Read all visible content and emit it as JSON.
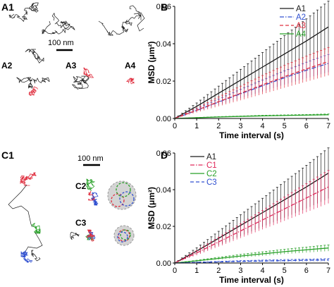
{
  "panel_labels": {
    "A1": "A1",
    "A2": "A2",
    "A3": "A3",
    "A4": "A4",
    "B": "B",
    "C1": "C1",
    "C2": "C2",
    "C3": "C3",
    "D": "D"
  },
  "scale_bars": {
    "A": "100 nm",
    "C": "100 nm"
  },
  "colors": {
    "black": "#1a1a1a",
    "blue": "#3050d0",
    "red": "#e03040",
    "pink": "#e0285a",
    "green": "#28a028",
    "circle_fill": "#d4d4d4",
    "circle_edge": "#999999"
  },
  "chart_data": [
    {
      "panel": "B",
      "type": "line",
      "xlabel": "Time interval (s)",
      "ylabel": "MSD (μm²)",
      "xlim": [
        0,
        7
      ],
      "ylim": [
        0,
        0.06
      ],
      "xticks": [
        "0",
        "1",
        "2",
        "3",
        "4",
        "5",
        "6",
        "7"
      ],
      "yticks": [
        "0.00",
        "0.02",
        "0.04",
        "0.06"
      ],
      "legend_position": "top-right",
      "x": [
        0,
        1,
        2,
        3,
        4,
        5,
        6,
        7
      ],
      "series": [
        {
          "name": "A1",
          "color": "#1a1a1a",
          "dash": "solid",
          "values": [
            0,
            0.0065,
            0.0135,
            0.0205,
            0.0275,
            0.0345,
            0.0415,
            0.049
          ],
          "error": [
            0,
            0.0018,
            0.0038,
            0.0058,
            0.0078,
            0.0098,
            0.0118,
            0.0138
          ]
        },
        {
          "name": "A2",
          "color": "#3050d0",
          "dash": "dashdot",
          "values": [
            0,
            0.0043,
            0.0088,
            0.0132,
            0.0175,
            0.0218,
            0.0258,
            0.0295
          ],
          "error": [
            0,
            0.0008,
            0.0016,
            0.0024,
            0.0031,
            0.0037,
            0.0043,
            0.0048
          ]
        },
        {
          "name": "A3",
          "color": "#e03040",
          "dash": "dash",
          "values": [
            0,
            0.0044,
            0.009,
            0.0135,
            0.018,
            0.0224,
            0.0265,
            0.0305
          ],
          "error": [
            0,
            0.0012,
            0.0025,
            0.0038,
            0.005,
            0.006,
            0.0068,
            0.0075
          ]
        },
        {
          "name": "A4",
          "color": "#28a028",
          "dash": "solid",
          "values": [
            0,
            0.0004,
            0.0008,
            0.0011,
            0.0014,
            0.0016,
            0.0018,
            0.002
          ],
          "error": [
            0,
            0.0001,
            0.0002,
            0.0002,
            0.0003,
            0.0003,
            0.0003,
            0.0004
          ]
        }
      ]
    },
    {
      "panel": "D",
      "type": "line",
      "xlabel": "Time interval (s)",
      "ylabel": "MSD (μm²)",
      "xlim": [
        0,
        7
      ],
      "ylim": [
        0,
        0.06
      ],
      "xticks": [
        "0",
        "1",
        "2",
        "3",
        "4",
        "5",
        "6",
        "7"
      ],
      "yticks": [
        "0.00",
        "0.02",
        "0.04",
        "0.06"
      ],
      "legend_position": "top-left",
      "x": [
        0,
        1,
        2,
        3,
        4,
        5,
        6,
        7
      ],
      "series": [
        {
          "name": "A1",
          "color": "#1a1a1a",
          "dash": "solid",
          "values": [
            0,
            0.0065,
            0.0135,
            0.0205,
            0.0275,
            0.0345,
            0.0415,
            0.049
          ],
          "error": [
            0,
            0.0018,
            0.0038,
            0.0058,
            0.0078,
            0.0098,
            0.0118,
            0.0138
          ]
        },
        {
          "name": "C1",
          "color": "#e0285a",
          "dash": "dashdot",
          "values": [
            0,
            0.0055,
            0.0115,
            0.0175,
            0.0235,
            0.0295,
            0.0355,
            0.0415
          ],
          "error": [
            0,
            0.0013,
            0.0026,
            0.0039,
            0.0052,
            0.0065,
            0.0078,
            0.009
          ]
        },
        {
          "name": "C2",
          "color": "#28a028",
          "dash": "solid",
          "values": [
            0,
            0.0012,
            0.0025,
            0.0038,
            0.005,
            0.0062,
            0.0072,
            0.0082
          ],
          "error": [
            0,
            0.0003,
            0.0006,
            0.0009,
            0.0011,
            0.0013,
            0.0015,
            0.0017
          ]
        },
        {
          "name": "C3",
          "color": "#3050d0",
          "dash": "dash",
          "values": [
            0,
            0.0003,
            0.0006,
            0.0009,
            0.0011,
            0.0013,
            0.0015,
            0.0017
          ],
          "error": [
            0,
            0.0002,
            0.0003,
            0.0004,
            0.0005,
            0.0006,
            0.0006,
            0.0007
          ]
        }
      ]
    }
  ]
}
